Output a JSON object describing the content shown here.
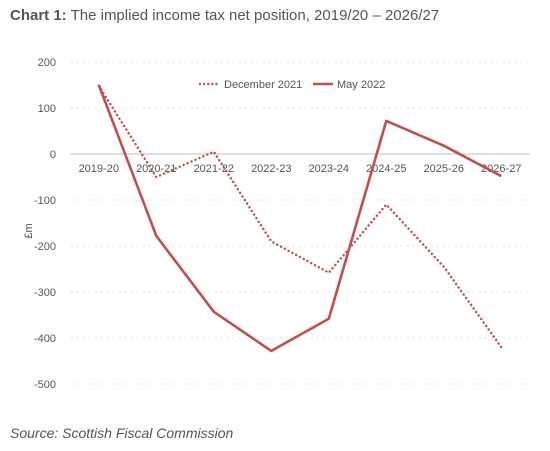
{
  "header": {
    "label": "Chart 1:",
    "title": "The implied income tax net position, 2019/20 – 2026/27"
  },
  "source": "Source: Scottish Fiscal Commission",
  "chart_data": {
    "type": "line",
    "categories": [
      "2019-20",
      "2020-21",
      "2021-22",
      "2022-23",
      "2023-24",
      "2024-25",
      "2025-26",
      "2026-27"
    ],
    "series": [
      {
        "name": "December 2021",
        "style": "dotted",
        "color": "#c0504d",
        "values": [
          148,
          -50,
          5,
          -190,
          -258,
          -110,
          -245,
          -420
        ]
      },
      {
        "name": "May 2022",
        "style": "solid",
        "color": "#c0504d",
        "values": [
          150,
          -178,
          -343,
          -428,
          -358,
          72,
          18,
          -48
        ]
      }
    ],
    "ylabel": "£m",
    "ylim": [
      -500,
      200
    ],
    "yticks": [
      200,
      100,
      0,
      -100,
      -200,
      -300,
      -400,
      -500
    ],
    "grid": true,
    "legend": "top-center"
  }
}
